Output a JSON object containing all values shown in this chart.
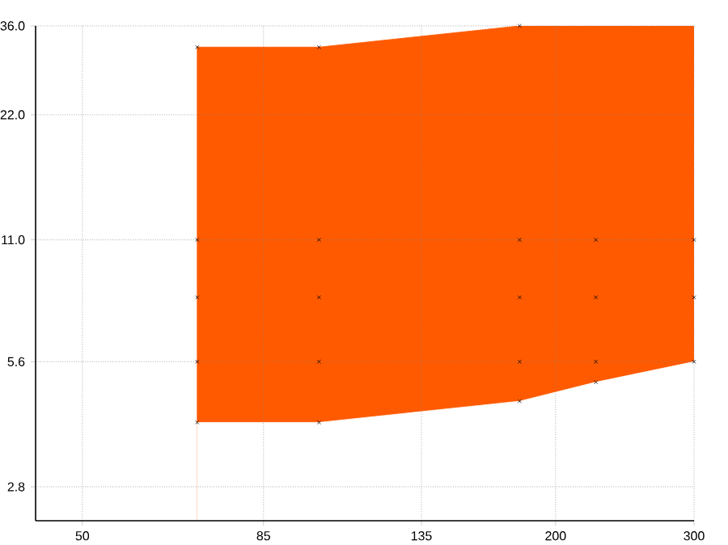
{
  "chart_data": {
    "type": "scatter",
    "log": "xy",
    "grid": true,
    "marker": "cross",
    "xlim": [
      43.6,
      300
    ],
    "ylim": [
      2.32,
      36
    ],
    "xticks": [
      50,
      85,
      135,
      200,
      300
    ],
    "yticks": [
      {
        "value": 2.8,
        "label": "2.8"
      },
      {
        "value": 5.6,
        "label": "5.6"
      },
      {
        "value": 11,
        "label": "11.0"
      },
      {
        "value": 22,
        "label": "22.0"
      },
      {
        "value": 36,
        "label": "36.0"
      }
    ],
    "series": [
      {
        "type": "area",
        "marker": "none",
        "color": "#ff5a00",
        "x": [
          70,
          100,
          180,
          225,
          300
        ],
        "values": [
          32,
          32,
          36,
          36,
          36
        ]
      },
      {
        "type": "area",
        "marker": "none",
        "color": "#ffffff",
        "x": [
          70,
          100,
          180,
          225,
          300
        ],
        "values": [
          4,
          4,
          4.5,
          5,
          5.6
        ]
      },
      {
        "color": "#000000",
        "x": [
          70,
          70,
          70,
          70,
          70,
          100,
          100,
          100,
          100,
          100,
          180,
          180,
          180,
          180,
          180,
          225,
          225,
          225,
          225,
          300,
          300,
          300
        ],
        "values": [
          32,
          11,
          8,
          5.6,
          4,
          32,
          11,
          8,
          5.6,
          4,
          36,
          11,
          8,
          5.6,
          4.5,
          11,
          8,
          5.6,
          5,
          11,
          8,
          5.6
        ]
      }
    ]
  }
}
